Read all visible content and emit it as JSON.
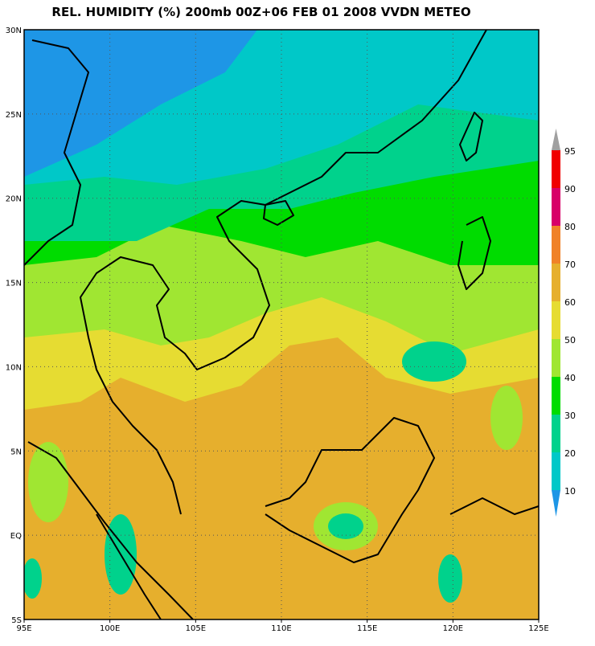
{
  "header": {
    "title": "REL. HUMIDITY (%) 200mb 00Z+06 FEB 01 2008 VVDN METEO"
  },
  "map": {
    "lon_labels": [
      "95E",
      "100E",
      "105E",
      "110E",
      "115E",
      "120E",
      "125E"
    ],
    "lat_labels": [
      "30N",
      "25N",
      "20N",
      "15N",
      "10N",
      "5N",
      "EQ",
      "5S"
    ]
  },
  "colorbar": {
    "levels": [
      95,
      90,
      80,
      70,
      60,
      50,
      40,
      30,
      20,
      10
    ],
    "colors": [
      "#a0a0a0",
      "#f00000",
      "#d80068",
      "#f08228",
      "#e6af2d",
      "#e6dc32",
      "#a0e632",
      "#00dc00",
      "#00d28c",
      "#00c8c8",
      "#1e96e6"
    ]
  }
}
